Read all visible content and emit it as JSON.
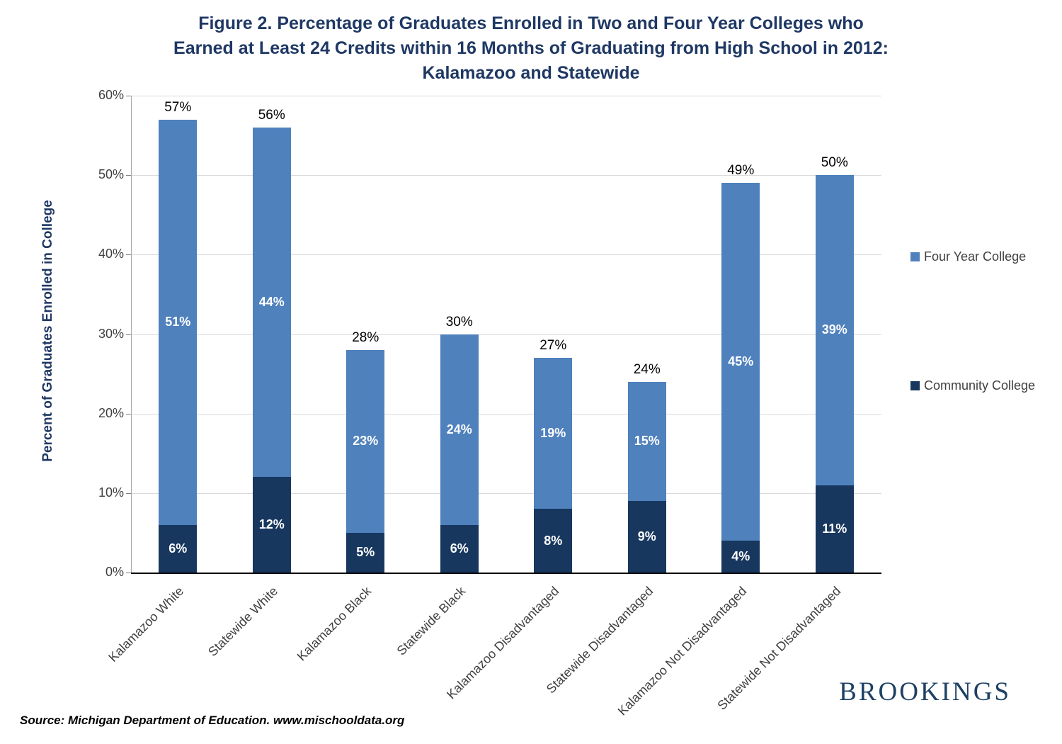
{
  "title": {
    "line1": "Figure 2.   Percentage of Graduates Enrolled in Two and Four Year Colleges who",
    "line2": "Earned at Least 24 Credits within 16 Months of Graduating from High School in 2012:",
    "line3": "Kalamazoo and Statewide"
  },
  "chart_data": {
    "type": "bar",
    "stacked": true,
    "categories": [
      "Kalamazoo White",
      "Statewide White",
      "Kalamazoo Black",
      "Statewide Black",
      "Kalamazoo Disadvantaged",
      "Statewide Disadvantaged",
      "Kalamazoo Not Disadvantaged",
      "Statewide Not Disadvantaged"
    ],
    "series": [
      {
        "name": "Community College",
        "color": "#17375E",
        "values": [
          6,
          12,
          5,
          6,
          8,
          9,
          4,
          11
        ]
      },
      {
        "name": "Four Year College",
        "color": "#4F81BD",
        "values": [
          51,
          44,
          23,
          24,
          19,
          15,
          45,
          39
        ]
      }
    ],
    "totals": [
      57,
      56,
      28,
      30,
      27,
      24,
      49,
      50
    ],
    "ylabel": "Percent of Graduates Enrolled in College",
    "ylim": [
      0,
      60
    ],
    "yticks": [
      0,
      10,
      20,
      30,
      40,
      50,
      60
    ],
    "ytick_labels": [
      "0%",
      "10%",
      "20%",
      "30%",
      "40%",
      "50%",
      "60%"
    ],
    "grid": true,
    "legend_position": "right"
  },
  "legend": {
    "items": [
      {
        "label": "Four Year College",
        "color": "#4F81BD"
      },
      {
        "label": "Community College",
        "color": "#17375E"
      }
    ]
  },
  "footer": {
    "source": "Source: Michigan Department of Education. www.mischooldata.org",
    "brand": "BROOKINGS"
  },
  "colors": {
    "title": "#1F3864",
    "grid": "#D9D9D9",
    "axis": "#000000",
    "tick_text": "#3f3f3f"
  }
}
